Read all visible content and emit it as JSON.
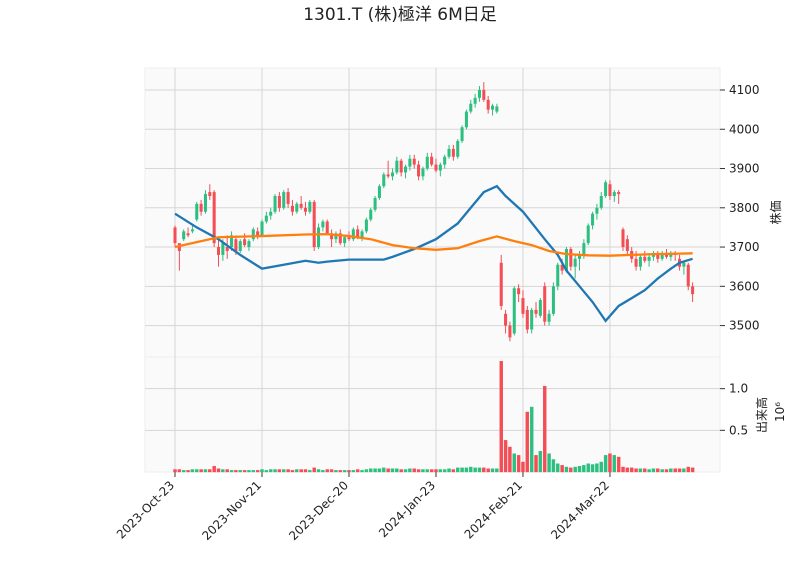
{
  "chart_data": {
    "type": "candlestick",
    "title": "1301.T (株)極洋 6M日足",
    "ylabel": "株価",
    "grid": true,
    "up_color": "#2dbf80",
    "down_color": "#f34d55",
    "xlim": [
      -6.9,
      125.3
    ],
    "ylim": [
      3420,
      4156
    ],
    "yticks": [
      3500,
      3600,
      3700,
      3800,
      3900,
      4000,
      4100
    ],
    "categories": [
      "2023-Oct-23",
      null,
      null,
      null,
      null,
      null,
      null,
      null,
      null,
      null,
      null,
      null,
      null,
      null,
      null,
      null,
      null,
      null,
      null,
      null,
      "2023-Nov-21",
      null,
      null,
      null,
      null,
      null,
      null,
      null,
      null,
      null,
      null,
      null,
      null,
      null,
      null,
      null,
      null,
      null,
      null,
      null,
      "2023-Dec-20",
      null,
      null,
      null,
      null,
      null,
      null,
      null,
      null,
      null,
      null,
      null,
      null,
      null,
      null,
      null,
      null,
      null,
      null,
      null,
      "2024-Jan-23",
      null,
      null,
      null,
      null,
      null,
      null,
      null,
      null,
      null,
      null,
      null,
      null,
      null,
      null,
      null,
      null,
      null,
      null,
      null,
      "2024-Feb-21",
      null,
      null,
      null,
      null,
      null,
      null,
      null,
      null,
      null,
      null,
      null,
      null,
      null,
      null,
      null,
      null,
      null,
      null,
      null,
      "2024-Mar-22",
      null,
      null,
      null,
      null,
      null,
      null,
      null,
      null,
      null,
      null,
      null,
      null,
      null,
      null,
      null,
      null,
      null,
      null,
      null
    ],
    "open": [
      3750,
      3710,
      3720,
      3735,
      3740,
      3770,
      3810,
      3790,
      3840,
      3840,
      3700,
      3680,
      3700,
      3700,
      3720,
      3690,
      3720,
      3700,
      3720,
      3740,
      3730,
      3765,
      3780,
      3790,
      3830,
      3800,
      3840,
      3805,
      3790,
      3810,
      3800,
      3790,
      3815,
      3700,
      3750,
      3765,
      3735,
      3720,
      3735,
      3710,
      3725,
      3720,
      3745,
      3725,
      3740,
      3770,
      3795,
      3825,
      3855,
      3885,
      3880,
      3890,
      3920,
      3890,
      3905,
      3925,
      3910,
      3880,
      3900,
      3930,
      3910,
      3895,
      3910,
      3930,
      3950,
      3930,
      3970,
      4005,
      4045,
      4065,
      4080,
      4100,
      4075,
      4050,
      4045,
      3660,
      3530,
      3500,
      3480,
      3595,
      3570,
      3540,
      3490,
      3540,
      3525,
      3600,
      3510,
      3530,
      3600,
      3655,
      3640,
      3695,
      3650,
      3670,
      3680,
      3710,
      3755,
      3785,
      3800,
      3830,
      3860,
      3830,
      3840,
      3745,
      3720,
      3690,
      3670,
      3650,
      3675,
      3665,
      3675,
      3685,
      3670,
      3685,
      3675,
      3685,
      3670,
      3650,
      3655,
      3600
    ],
    "high": [
      3755,
      3710,
      3745,
      3750,
      3760,
      3815,
      3820,
      3845,
      3860,
      3845,
      3720,
      3720,
      3730,
      3740,
      3730,
      3720,
      3735,
      3720,
      3750,
      3750,
      3770,
      3790,
      3800,
      3835,
      3840,
      3845,
      3850,
      3820,
      3815,
      3830,
      3815,
      3820,
      3820,
      3760,
      3770,
      3770,
      3745,
      3740,
      3745,
      3730,
      3740,
      3750,
      3755,
      3745,
      3775,
      3800,
      3830,
      3860,
      3890,
      3920,
      3900,
      3930,
      3925,
      3910,
      3935,
      3935,
      3920,
      3905,
      3940,
      3940,
      3925,
      3915,
      3935,
      3960,
      3960,
      3975,
      4010,
      4050,
      4075,
      4090,
      4110,
      4120,
      4085,
      4065,
      4065,
      3680,
      3540,
      3510,
      3600,
      3605,
      3590,
      3550,
      3545,
      3560,
      3570,
      3610,
      3540,
      3610,
      3660,
      3670,
      3700,
      3700,
      3680,
      3690,
      3720,
      3760,
      3790,
      3810,
      3840,
      3870,
      3870,
      3845,
      3845,
      3750,
      3730,
      3700,
      3690,
      3680,
      3690,
      3680,
      3690,
      3690,
      3690,
      3695,
      3690,
      3690,
      3680,
      3665,
      3660,
      3610
    ],
    "low": [
      3700,
      3640,
      3715,
      3725,
      3735,
      3765,
      3780,
      3785,
      3820,
      3700,
      3650,
      3665,
      3670,
      3690,
      3680,
      3685,
      3700,
      3690,
      3715,
      3720,
      3725,
      3760,
      3770,
      3785,
      3790,
      3795,
      3800,
      3780,
      3785,
      3795,
      3780,
      3785,
      3690,
      3695,
      3740,
      3730,
      3700,
      3710,
      3705,
      3700,
      3715,
      3715,
      3720,
      3715,
      3735,
      3765,
      3790,
      3820,
      3850,
      3875,
      3870,
      3885,
      3880,
      3875,
      3895,
      3900,
      3870,
      3870,
      3895,
      3905,
      3890,
      3880,
      3900,
      3925,
      3920,
      3925,
      3965,
      4000,
      4040,
      4055,
      4070,
      4070,
      4040,
      4035,
      4040,
      3540,
      3480,
      3460,
      3475,
      3560,
      3520,
      3480,
      3480,
      3520,
      3520,
      3500,
      3500,
      3525,
      3590,
      3630,
      3635,
      3640,
      3620,
      3640,
      3670,
      3705,
      3745,
      3770,
      3795,
      3825,
      3820,
      3815,
      3810,
      3690,
      3680,
      3660,
      3640,
      3640,
      3660,
      3650,
      3665,
      3660,
      3665,
      3670,
      3665,
      3665,
      3640,
      3630,
      3590,
      3560
    ],
    "close": [
      3710,
      3690,
      3740,
      3730,
      3745,
      3810,
      3790,
      3835,
      3830,
      3710,
      3680,
      3710,
      3690,
      3730,
      3690,
      3715,
      3705,
      3715,
      3745,
      3730,
      3765,
      3780,
      3790,
      3830,
      3800,
      3840,
      3810,
      3790,
      3810,
      3800,
      3790,
      3815,
      3700,
      3750,
      3765,
      3735,
      3720,
      3735,
      3710,
      3725,
      3720,
      3745,
      3725,
      3740,
      3770,
      3795,
      3825,
      3855,
      3885,
      3880,
      3890,
      3920,
      3890,
      3905,
      3925,
      3910,
      3880,
      3900,
      3930,
      3910,
      3895,
      3910,
      3930,
      3950,
      3930,
      3970,
      4005,
      4045,
      4065,
      4080,
      4100,
      4075,
      4050,
      4060,
      4058,
      3550,
      3500,
      3470,
      3595,
      3580,
      3530,
      3490,
      3540,
      3530,
      3565,
      3510,
      3530,
      3600,
      3655,
      3640,
      3695,
      3650,
      3670,
      3680,
      3710,
      3755,
      3785,
      3800,
      3830,
      3865,
      3830,
      3840,
      3835,
      3700,
      3690,
      3670,
      3650,
      3675,
      3665,
      3675,
      3685,
      3670,
      3685,
      3675,
      3685,
      3680,
      3650,
      3660,
      3600,
      3580
    ],
    "moving_averages": [
      {
        "color": "#1f77b4",
        "x": [
          0,
          5,
          10,
          15,
          20,
          25,
          30,
          33,
          35,
          40,
          45,
          48,
          50,
          55,
          60,
          65,
          68,
          71,
          74,
          76,
          78,
          80,
          85,
          88,
          90,
          93,
          96,
          99,
          102,
          105,
          108,
          111,
          114,
          116,
          119
        ],
        "values": [
          3785,
          3750,
          3720,
          3680,
          3645,
          3655,
          3665,
          3660,
          3663,
          3668,
          3668,
          3668,
          3675,
          3695,
          3720,
          3760,
          3800,
          3840,
          3855,
          3830,
          3810,
          3790,
          3720,
          3680,
          3640,
          3600,
          3560,
          3512,
          3550,
          3570,
          3590,
          3620,
          3645,
          3660,
          3670
        ]
      },
      {
        "color": "#ff7f0e",
        "x": [
          0,
          10,
          20,
          30,
          35,
          40,
          45,
          50,
          55,
          60,
          65,
          70,
          74,
          78,
          82,
          86,
          90,
          95,
          100,
          105,
          110,
          115,
          119
        ],
        "values": [
          3700,
          3725,
          3728,
          3732,
          3733,
          3728,
          3720,
          3705,
          3697,
          3693,
          3697,
          3715,
          3727,
          3715,
          3705,
          3690,
          3682,
          3679,
          3678,
          3680,
          3682,
          3683,
          3684
        ]
      }
    ],
    "volume": {
      "ylabel": "出来高",
      "offset": "10⁶",
      "ylim": [
        0,
        1.38
      ],
      "yticks": [
        0.5,
        {
          "value": 1,
          "label": "1.0"
        }
      ],
      "values": [
        0.03,
        0.03,
        0.02,
        0.02,
        0.03,
        0.03,
        0.03,
        0.03,
        0.03,
        0.07,
        0.04,
        0.03,
        0.03,
        0.02,
        0.02,
        0.02,
        0.02,
        0.02,
        0.02,
        0.02,
        0.03,
        0.02,
        0.03,
        0.03,
        0.03,
        0.03,
        0.03,
        0.02,
        0.03,
        0.03,
        0.03,
        0.02,
        0.05,
        0.03,
        0.02,
        0.03,
        0.03,
        0.02,
        0.02,
        0.02,
        0.02,
        0.02,
        0.03,
        0.02,
        0.03,
        0.04,
        0.04,
        0.04,
        0.05,
        0.04,
        0.04,
        0.04,
        0.03,
        0.03,
        0.04,
        0.04,
        0.03,
        0.03,
        0.03,
        0.03,
        0.03,
        0.03,
        0.03,
        0.04,
        0.03,
        0.05,
        0.05,
        0.05,
        0.06,
        0.05,
        0.05,
        0.05,
        0.04,
        0.04,
        0.04,
        1.33,
        0.38,
        0.3,
        0.22,
        0.2,
        0.12,
        0.72,
        0.78,
        0.2,
        0.25,
        1.03,
        0.22,
        0.15,
        0.1,
        0.08,
        0.06,
        0.05,
        0.06,
        0.07,
        0.08,
        0.1,
        0.09,
        0.1,
        0.12,
        0.2,
        0.22,
        0.2,
        0.18,
        0.06,
        0.05,
        0.05,
        0.04,
        0.04,
        0.04,
        0.03,
        0.04,
        0.04,
        0.03,
        0.03,
        0.04,
        0.04,
        0.04,
        0.04,
        0.06,
        0.05
      ]
    }
  }
}
